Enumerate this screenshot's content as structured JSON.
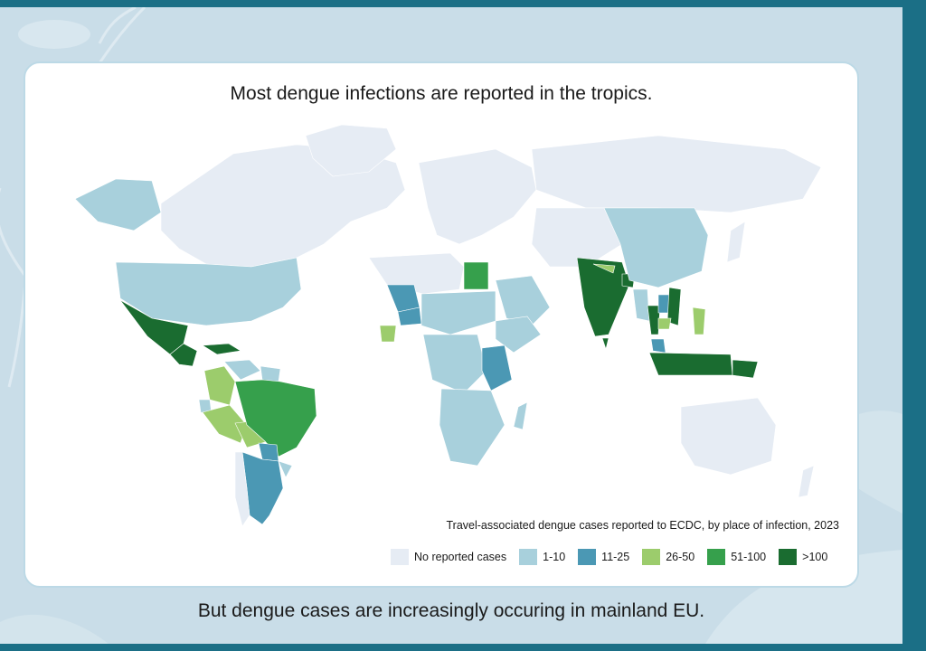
{
  "title": "Most dengue infections are reported in the tropics.",
  "footer": "But dengue cases are increasingly occuring in mainland EU.",
  "legend": {
    "title": "Travel-associated dengue cases reported to ECDC, by place of infection, 2023",
    "items": [
      {
        "label": "No reported cases",
        "color": "#e6ecf4"
      },
      {
        "label": "1-10",
        "color": "#a8d0dc"
      },
      {
        "label": "11-25",
        "color": "#4b98b4"
      },
      {
        "label": "26-50",
        "color": "#9ccc6c"
      },
      {
        "label": "51-100",
        "color": "#36a04c"
      },
      {
        "label": ">100",
        "color": "#1a6c30"
      }
    ]
  },
  "colors": {
    "page_edge": "#1b6f86",
    "background": "#c9dde8",
    "card": "#ffffff",
    "card_border": "#bcd9e6"
  },
  "regions": [
    {
      "name": "Canada",
      "category": "No reported cases"
    },
    {
      "name": "Greenland",
      "category": "No reported cases"
    },
    {
      "name": "Alaska",
      "category": "1-10"
    },
    {
      "name": "United States",
      "category": "1-10"
    },
    {
      "name": "Mexico",
      "category": ">100"
    },
    {
      "name": "Central America",
      "category": ">100"
    },
    {
      "name": "Caribbean",
      "category": ">100"
    },
    {
      "name": "Colombia",
      "category": "26-50"
    },
    {
      "name": "Venezuela",
      "category": "1-10"
    },
    {
      "name": "Guianas",
      "category": "1-10"
    },
    {
      "name": "Ecuador",
      "category": "1-10"
    },
    {
      "name": "Peru",
      "category": "26-50"
    },
    {
      "name": "Bolivia",
      "category": "26-50"
    },
    {
      "name": "Brazil",
      "category": "51-100"
    },
    {
      "name": "Paraguay",
      "category": "11-25"
    },
    {
      "name": "Argentina",
      "category": "11-25"
    },
    {
      "name": "Chile",
      "category": "No reported cases"
    },
    {
      "name": "Uruguay",
      "category": "1-10"
    },
    {
      "name": "Europe",
      "category": "No reported cases"
    },
    {
      "name": "Russia",
      "category": "No reported cases"
    },
    {
      "name": "North Africa",
      "category": "No reported cases"
    },
    {
      "name": "Egypt",
      "category": "51-100"
    },
    {
      "name": "Arabian Peninsula",
      "category": "1-10"
    },
    {
      "name": "Mali",
      "category": "11-25"
    },
    {
      "name": "Cote d'Ivoire",
      "category": "26-50"
    },
    {
      "name": "Burkina Faso",
      "category": "11-25"
    },
    {
      "name": "Sahel",
      "category": "1-10"
    },
    {
      "name": "Horn of Africa",
      "category": "1-10"
    },
    {
      "name": "Central Africa",
      "category": "1-10"
    },
    {
      "name": "Tanzania",
      "category": "11-25"
    },
    {
      "name": "Southern Africa",
      "category": "1-10"
    },
    {
      "name": "Madagascar",
      "category": "1-10"
    },
    {
      "name": "Central Asia",
      "category": "No reported cases"
    },
    {
      "name": "India",
      "category": ">100"
    },
    {
      "name": "Sri Lanka",
      "category": ">100"
    },
    {
      "name": "Bangladesh",
      "category": ">100"
    },
    {
      "name": "Nepal",
      "category": "26-50"
    },
    {
      "name": "China",
      "category": "1-10"
    },
    {
      "name": "Myanmar",
      "category": "1-10"
    },
    {
      "name": "Thailand",
      "category": ">100"
    },
    {
      "name": "Laos",
      "category": "11-25"
    },
    {
      "name": "Vietnam",
      "category": ">100"
    },
    {
      "name": "Cambodia",
      "category": "26-50"
    },
    {
      "name": "Philippines",
      "category": "26-50"
    },
    {
      "name": "Malaysia",
      "category": "11-25"
    },
    {
      "name": "Indonesia",
      "category": ">100"
    },
    {
      "name": "Papua New Guinea",
      "category": ">100"
    },
    {
      "name": "Japan",
      "category": "No reported cases"
    },
    {
      "name": "Australia",
      "category": "No reported cases"
    },
    {
      "name": "New Zealand",
      "category": "No reported cases"
    }
  ]
}
